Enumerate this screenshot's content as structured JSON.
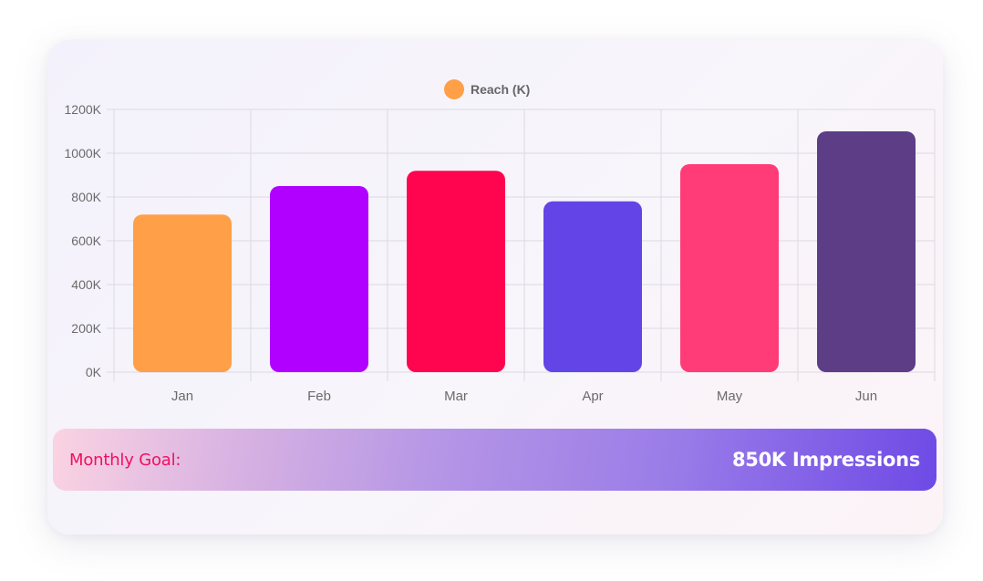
{
  "chart_data": {
    "type": "bar",
    "legend": {
      "label": "Reach (K)",
      "color": "#ff9f47",
      "placement": "top-center"
    },
    "categories": [
      "Jan",
      "Feb",
      "Mar",
      "Apr",
      "May",
      "Jun"
    ],
    "series": [
      {
        "name": "Reach (K)",
        "values": [
          720,
          850,
          920,
          780,
          950,
          1100
        ]
      }
    ],
    "colors": [
      "#ff9f47",
      "#b100ff",
      "#ff0550",
      "#6344e6",
      "#ff3c78",
      "#5d3d85"
    ],
    "ylim": [
      0,
      1200
    ],
    "yticks": [
      0,
      200,
      400,
      600,
      800,
      1000,
      1200
    ],
    "ytick_labels": [
      "0K",
      "200K",
      "400K",
      "600K",
      "800K",
      "1000K",
      "1200K"
    ],
    "grid": true
  },
  "goal": {
    "label": "Monthly Goal:",
    "value": "850K Impressions"
  }
}
